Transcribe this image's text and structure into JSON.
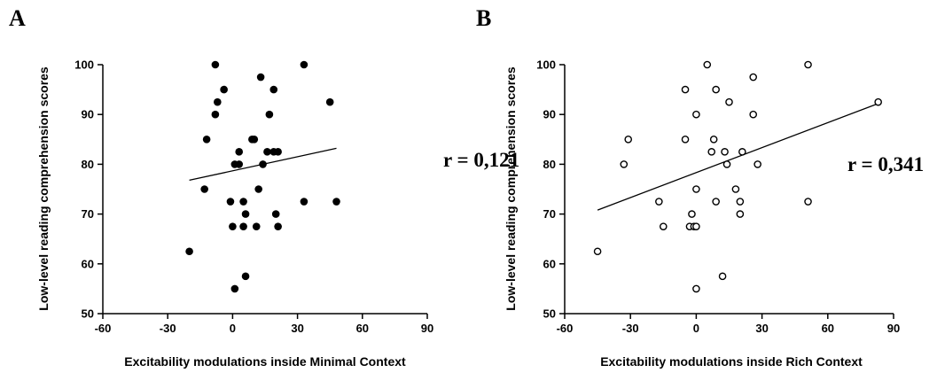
{
  "chart_data": [
    {
      "panel": "A",
      "type": "scatter",
      "xlabel": "Excitability modulations inside Minimal Context",
      "ylabel": "Low-level reading comprehension scores",
      "xlim": [
        -60,
        90
      ],
      "ylim": [
        50,
        100
      ],
      "xticks": [
        "-60",
        "-30",
        "0",
        "30",
        "60",
        "90"
      ],
      "yticks": [
        "50",
        "60",
        "70",
        "80",
        "90",
        "100"
      ],
      "marker": "filled",
      "annotation": "r = 0,121",
      "trendline": {
        "x": [
          -20,
          48
        ],
        "y": [
          76.8,
          83.2
        ]
      },
      "points": [
        [
          -8,
          100
        ],
        [
          -7,
          92.5
        ],
        [
          -8,
          90
        ],
        [
          -4,
          95
        ],
        [
          -12,
          85
        ],
        [
          -13,
          75
        ],
        [
          -20,
          62.5
        ],
        [
          1,
          80
        ],
        [
          3,
          80
        ],
        [
          3,
          82.5
        ],
        [
          -1,
          72.5
        ],
        [
          0,
          67.5
        ],
        [
          1,
          55
        ],
        [
          5,
          72.5
        ],
        [
          5,
          67.5
        ],
        [
          6,
          70
        ],
        [
          6,
          57.5
        ],
        [
          9,
          85
        ],
        [
          10,
          85
        ],
        [
          11,
          67.5
        ],
        [
          12,
          75
        ],
        [
          13,
          97.5
        ],
        [
          14,
          80
        ],
        [
          16,
          82.5
        ],
        [
          17,
          90
        ],
        [
          19,
          95
        ],
        [
          19,
          82.5
        ],
        [
          20,
          70
        ],
        [
          21,
          82.5
        ],
        [
          21,
          67.5
        ],
        [
          33,
          100
        ],
        [
          33,
          72.5
        ],
        [
          45,
          92.5
        ],
        [
          48,
          72.5
        ]
      ]
    },
    {
      "panel": "B",
      "type": "scatter",
      "xlabel": "Excitability modulations inside Rich Context",
      "ylabel": "Low-level reading comprehension scores",
      "xlim": [
        -60,
        90
      ],
      "ylim": [
        50,
        100
      ],
      "xticks": [
        "-60",
        "-30",
        "0",
        "30",
        "60",
        "90"
      ],
      "yticks": [
        "50",
        "60",
        "70",
        "80",
        "90",
        "100"
      ],
      "marker": "hollow",
      "annotation": "r = 0,341",
      "trendline": {
        "x": [
          -45,
          83
        ],
        "y": [
          70.8,
          92.2
        ]
      },
      "points": [
        [
          -45,
          62.5
        ],
        [
          -33,
          80
        ],
        [
          -31,
          85
        ],
        [
          -17,
          72.5
        ],
        [
          -15,
          67.5
        ],
        [
          -5,
          95
        ],
        [
          -5,
          85
        ],
        [
          -3,
          67.5
        ],
        [
          -2,
          70
        ],
        [
          -1,
          67.5
        ],
        [
          0,
          67.5
        ],
        [
          0,
          90
        ],
        [
          0,
          75
        ],
        [
          0,
          55
        ],
        [
          5,
          100
        ],
        [
          7,
          82.5
        ],
        [
          8,
          85
        ],
        [
          9,
          95
        ],
        [
          9,
          72.5
        ],
        [
          12,
          57.5
        ],
        [
          13,
          82.5
        ],
        [
          14,
          80
        ],
        [
          15,
          92.5
        ],
        [
          18,
          75
        ],
        [
          20,
          70
        ],
        [
          20,
          72.5
        ],
        [
          21,
          82.5
        ],
        [
          26,
          97.5
        ],
        [
          26,
          90
        ],
        [
          28,
          80
        ],
        [
          51,
          100
        ],
        [
          51,
          72.5
        ],
        [
          83,
          92.5
        ]
      ]
    }
  ]
}
